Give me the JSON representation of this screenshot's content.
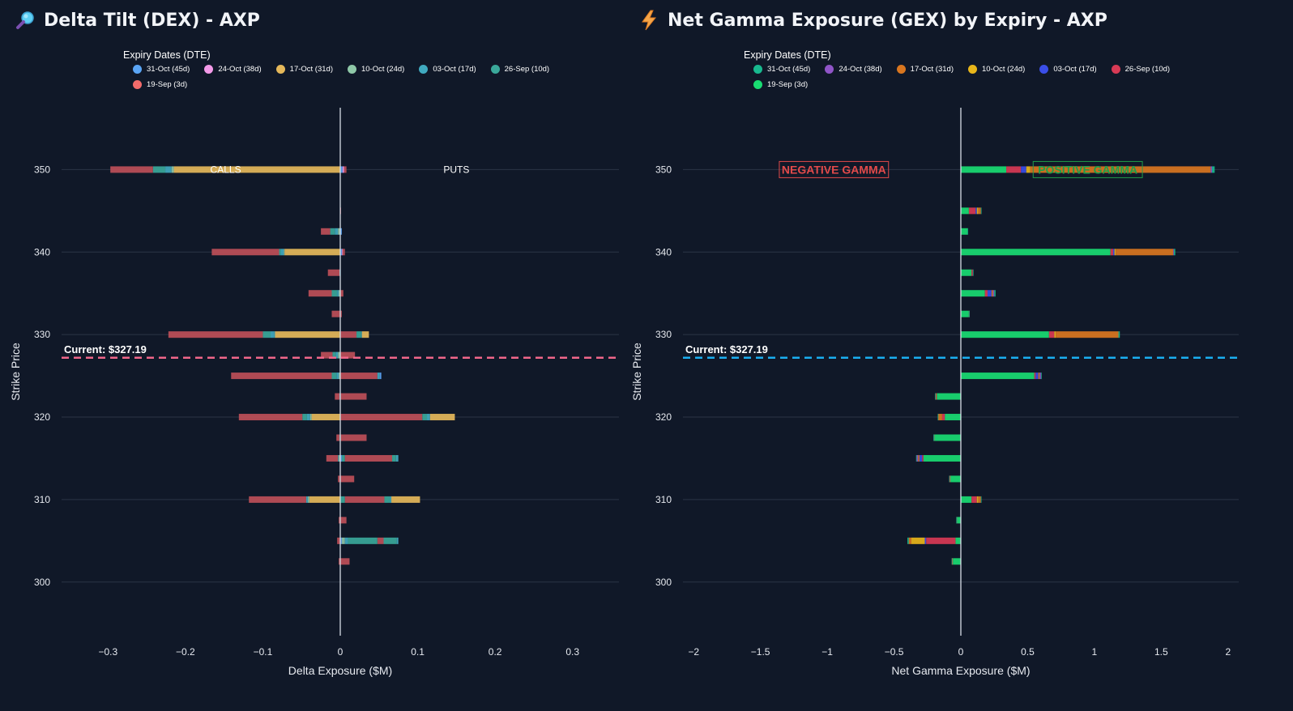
{
  "chart_data": [
    {
      "type": "bar",
      "orientation": "horizontal",
      "stacked": true,
      "title": "Delta Tilt (DEX) - AXP",
      "xlabel": "Delta Exposure ($M)",
      "ylabel": "Strike Price",
      "xlim": [
        -0.36,
        0.36
      ],
      "ylim": [
        293.5,
        357.5
      ],
      "xticks": [
        -0.3,
        -0.2,
        -0.1,
        0,
        0.1,
        0.2,
        0.3
      ],
      "xtick_labels": [
        "−0.3",
        "−0.2",
        "−0.1",
        "0",
        "0.1",
        "0.2",
        "0.3"
      ],
      "yticks": [
        300,
        310,
        320,
        330,
        340,
        350
      ],
      "legend_title": "Expiry Dates (DTE)",
      "strikes": [
        350,
        345,
        342.5,
        340,
        337.5,
        335,
        332.5,
        330,
        327.5,
        325,
        322.5,
        320,
        317.5,
        315,
        312.5,
        310,
        307.5,
        305,
        302.5
      ],
      "series": [
        {
          "name": "31-Oct (45d)",
          "color": "#5aa5f5",
          "values": [
            0.003,
            0,
            0.002,
            0.002,
            0,
            0,
            0,
            0,
            0,
            0,
            0,
            0,
            0,
            0.002,
            0,
            0,
            0,
            0.002,
            0
          ]
        },
        {
          "name": "24-Oct (38d)",
          "color": "#f39ae8",
          "values": [
            0.002,
            0,
            0,
            0.001,
            0,
            0,
            0,
            0,
            0,
            0,
            0,
            0,
            0,
            0,
            0,
            0,
            0,
            0,
            0
          ]
        },
        {
          "name": "17-Oct (31d)",
          "color": "#e5b85a",
          "values": [
            -0.215,
            0,
            0,
            -0.072,
            0,
            0,
            0,
            -0.084,
            0,
            0,
            0,
            -0.037,
            0,
            0,
            0,
            -0.04,
            0,
            0,
            0
          ]
        },
        {
          "name": "10-Oct (24d)",
          "color": "#8fc8a8",
          "values": [
            -0.003,
            0,
            -0.003,
            -0.001,
            0,
            -0.002,
            0,
            -0.001,
            -0.003,
            -0.002,
            0,
            -0.002,
            0,
            -0.002,
            0,
            -0.002,
            0,
            0.004,
            0
          ]
        },
        {
          "name": "03-Oct (17d)",
          "color": "#40aac0",
          "values": [
            -0.008,
            0,
            -0.004,
            -0.004,
            -0.001,
            -0.002,
            0,
            -0.005,
            -0.003,
            -0.003,
            -0.001,
            -0.004,
            0,
            -0.001,
            0,
            -0.002,
            0,
            0.004,
            0
          ]
        },
        {
          "name": "26-Sep (10d)",
          "color": "#3aa89a",
          "values": [
            -0.016,
            0,
            -0.006,
            -0.002,
            0,
            -0.007,
            0,
            -0.01,
            -0.004,
            -0.006,
            0,
            -0.006,
            -0.001,
            0.004,
            0,
            0.006,
            0,
            0.038,
            0
          ]
        },
        {
          "name": "19-Sep (3d)",
          "color": "#bd4f58",
          "values": [
            -0.055,
            0.001,
            -0.012,
            -0.087,
            -0.015,
            -0.03,
            -0.011,
            -0.122,
            -0.015,
            -0.13,
            -0.006,
            -0.082,
            -0.004,
            -0.015,
            -0.003,
            -0.074,
            -0.002,
            -0.004,
            -0.002
          ]
        },
        {
          "name": "19-Sep (3d)",
          "color": "#bd4f58",
          "values": [
            0.003,
            0,
            0,
            0.003,
            0,
            0.004,
            0.002,
            0.021,
            0.019,
            0.048,
            0.034,
            0.106,
            0.034,
            0.061,
            0.018,
            0.051,
            0.008,
            0.008,
            0.012
          ]
        },
        {
          "name": "26-Sep (10d)",
          "color": "#3aa89a",
          "values": [
            0,
            0,
            0,
            0,
            0,
            0,
            0,
            0.006,
            0,
            0,
            0,
            0.006,
            0,
            0.005,
            0,
            0.007,
            0,
            0.017,
            0
          ]
        },
        {
          "name": "03-Oct (17d)",
          "color": "#40aac0",
          "values": [
            0,
            0,
            0,
            0,
            0,
            0,
            0,
            0.001,
            0,
            0.003,
            0,
            0.004,
            0,
            0.003,
            0,
            0.002,
            0,
            0.002,
            0
          ]
        },
        {
          "name": "17-Oct (31d)",
          "color": "#e5b85a",
          "values": [
            0,
            0,
            0,
            0,
            0,
            0,
            0,
            0.009,
            0,
            0,
            0,
            0.032,
            0,
            0,
            0,
            0.037,
            0,
            0,
            0
          ]
        },
        {
          "name": "31-Oct (45d)",
          "color": "#5aa5f5",
          "values": [
            0,
            0,
            0,
            0,
            0,
            0,
            0,
            0,
            0,
            0.002,
            0,
            0,
            0,
            0,
            0,
            0,
            0,
            0,
            0
          ]
        }
      ],
      "legend": [
        {
          "label": "31-Oct (45d)",
          "color": "#5aa5f5"
        },
        {
          "label": "24-Oct (38d)",
          "color": "#f39ae8"
        },
        {
          "label": "17-Oct (31d)",
          "color": "#e5b85a"
        },
        {
          "label": "10-Oct (24d)",
          "color": "#8fc8a8"
        },
        {
          "label": "03-Oct (17d)",
          "color": "#40aac0"
        },
        {
          "label": "26-Sep (10d)",
          "color": "#3aa89a"
        },
        {
          "label": "19-Sep (3d)",
          "color": "#f26b6b"
        }
      ],
      "current_price": 327.19,
      "current_label": "Current: $327.19",
      "current_line_color": "#f0668a",
      "annotations": [
        {
          "text": "CALLS",
          "x": -0.148,
          "y": 350
        },
        {
          "text": "PUTS",
          "x": 0.15,
          "y": 350
        }
      ]
    },
    {
      "type": "bar",
      "orientation": "horizontal",
      "stacked": true,
      "title": "Net Gamma Exposure (GEX) by Expiry - AXP",
      "xlabel": "Net Gamma Exposure ($M)",
      "ylabel": "Strike Price",
      "xlim": [
        -2.08,
        2.08
      ],
      "ylim": [
        293.5,
        357.5
      ],
      "xticks": [
        -2,
        -1.5,
        -1,
        -0.5,
        0,
        0.5,
        1,
        1.5,
        2
      ],
      "xtick_labels": [
        "−2",
        "−1.5",
        "−1",
        "−0.5",
        "0",
        "0.5",
        "1",
        "1.5",
        "2"
      ],
      "yticks": [
        300,
        310,
        320,
        330,
        340,
        350
      ],
      "legend_title": "Expiry Dates (DTE)",
      "strikes": [
        350,
        345,
        342.5,
        340,
        337.5,
        335,
        332.5,
        330,
        325,
        322.5,
        320,
        317.5,
        315,
        312.5,
        310,
        307.5,
        305,
        302.5
      ],
      "series": [
        {
          "name": "19-Sep (3d)",
          "color": "#19dc72",
          "values": [
            0.34,
            0.06,
            0.05,
            1.12,
            0.08,
            0.18,
            0.06,
            0.66,
            0.55,
            -0.18,
            -0.12,
            -0.2,
            -0.28,
            -0.08,
            0.08,
            -0.03,
            -0.04,
            -0.06
          ]
        },
        {
          "name": "26-Sep (10d)",
          "color": "#d83a55",
          "values": [
            0.11,
            0.05,
            0,
            0.02,
            0.01,
            0.02,
            0.001,
            0.04,
            0.01,
            -0.005,
            -0.02,
            -0.003,
            -0.01,
            -0.003,
            0.04,
            -0.003,
            -0.22,
            -0.005
          ]
        },
        {
          "name": "03-Oct (17d)",
          "color": "#3a4ee8",
          "values": [
            0.04,
            0.01,
            0,
            0.01,
            0,
            0.03,
            0,
            0,
            0.02,
            0,
            0,
            0,
            -0.02,
            0,
            0,
            0,
            -0.01,
            0
          ]
        },
        {
          "name": "10-Oct (24d)",
          "color": "#e8b61a",
          "values": [
            0.03,
            0.01,
            0,
            0.01,
            0,
            0,
            0,
            0.01,
            0,
            0,
            0,
            0,
            0,
            0,
            0.01,
            0,
            -0.1,
            0
          ]
        },
        {
          "name": "17-Oct (31d)",
          "color": "#d9761f",
          "values": [
            1.35,
            0.02,
            0,
            0.43,
            0,
            0.01,
            0,
            0.47,
            0.01,
            -0.005,
            -0.03,
            0,
            -0.01,
            -0.003,
            0.02,
            0,
            -0.02,
            -0.002
          ]
        },
        {
          "name": "24-Oct (38d)",
          "color": "#9055c8",
          "values": [
            0.01,
            0,
            0,
            0.005,
            0,
            0.01,
            0,
            0,
            0.01,
            0,
            0,
            0,
            -0.01,
            0,
            0,
            0,
            0,
            0
          ]
        },
        {
          "name": "31-Oct (45d)",
          "color": "#18b98f",
          "values": [
            0.02,
            0.005,
            0.003,
            0.01,
            0.003,
            0.01,
            0.002,
            0.01,
            0.005,
            -0.003,
            -0.003,
            -0.002,
            -0.005,
            -0.002,
            0.003,
            -0.001,
            -0.01,
            -0.002
          ]
        }
      ],
      "legend": [
        {
          "label": "31-Oct (45d)",
          "color": "#18b98f"
        },
        {
          "label": "24-Oct (38d)",
          "color": "#9055c8"
        },
        {
          "label": "17-Oct (31d)",
          "color": "#d9761f"
        },
        {
          "label": "10-Oct (24d)",
          "color": "#e8b61a"
        },
        {
          "label": "03-Oct (17d)",
          "color": "#3a4ee8"
        },
        {
          "label": "26-Sep (10d)",
          "color": "#d83a55"
        },
        {
          "label": "19-Sep (3d)",
          "color": "#19dc72"
        }
      ],
      "current_price": 327.19,
      "current_label": "Current: $327.19",
      "current_line_color": "#1aaef0",
      "annotations": [
        {
          "text": "NEGATIVE GAMMA",
          "x": -0.95,
          "y": 350,
          "color": "#e24a4a"
        },
        {
          "text": "POSITIVE GAMMA",
          "x": 0.95,
          "y": 350,
          "color": "#1f9f4a"
        }
      ]
    }
  ]
}
